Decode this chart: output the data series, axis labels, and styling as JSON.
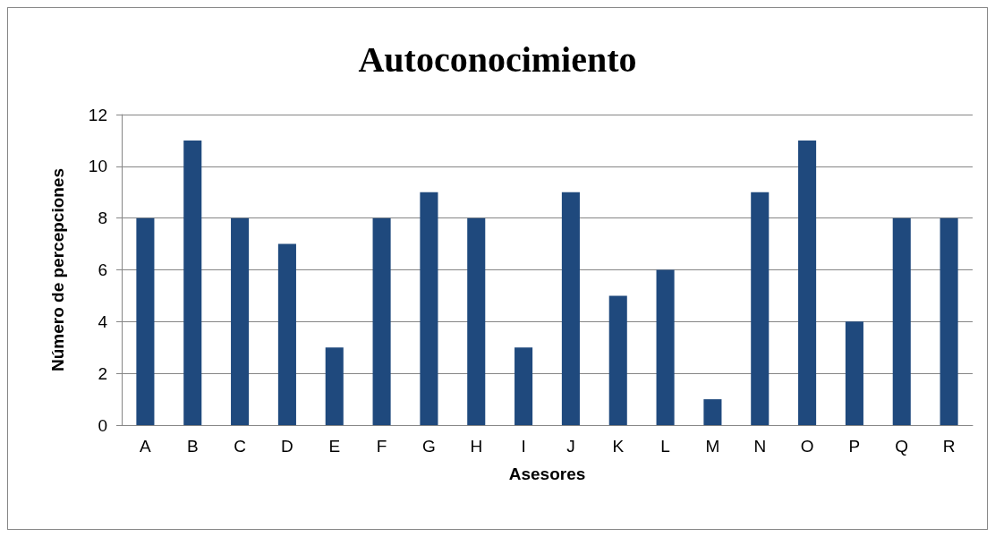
{
  "chart_data": {
    "type": "bar",
    "title": "Autoconocimiento",
    "xlabel": "Asesores",
    "ylabel": "Número de percepciones",
    "categories": [
      "A",
      "B",
      "C",
      "D",
      "E",
      "F",
      "G",
      "H",
      "I",
      "J",
      "K",
      "L",
      "M",
      "N",
      "O",
      "P",
      "Q",
      "R"
    ],
    "values": [
      8,
      11,
      8,
      7,
      3,
      8,
      9,
      8,
      3,
      9,
      5,
      6,
      1,
      9,
      11,
      4,
      8,
      8
    ],
    "color": "#1f497d",
    "ylim": [
      0,
      12
    ],
    "yticks": [
      0,
      2,
      4,
      6,
      8,
      10,
      12
    ],
    "grid": "y"
  }
}
